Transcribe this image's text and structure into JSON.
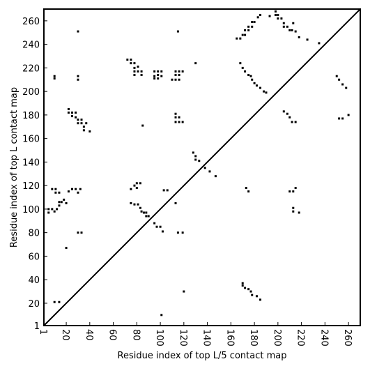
{
  "chart_data": {
    "type": "scatter",
    "xlabel": "Residue index of top L/5 contact map",
    "ylabel": "Residue index of top L contact map",
    "xlim": [
      1,
      270
    ],
    "ylim": [
      1,
      270
    ],
    "xticks": [
      1,
      20,
      40,
      60,
      80,
      100,
      120,
      140,
      160,
      180,
      200,
      220,
      240,
      260
    ],
    "yticks": [
      1,
      20,
      40,
      60,
      80,
      100,
      120,
      140,
      160,
      180,
      200,
      220,
      240,
      260
    ],
    "diagonal": true,
    "series": [
      {
        "color": "#000000",
        "x": [
          10,
          10,
          30,
          30,
          30,
          22,
          22,
          25,
          25,
          28,
          28,
          30,
          30,
          33,
          33,
          35,
          35,
          37,
          40,
          85,
          72,
          75,
          75,
          78,
          78,
          78,
          81,
          81,
          84,
          84,
          78,
          95,
          95,
          98,
          98,
          101,
          101,
          98,
          95,
          110,
          113,
          113,
          116,
          116,
          116,
          113,
          119,
          115,
          113,
          113,
          116,
          116,
          119,
          113,
          130,
          168,
          170,
          172,
          172,
          175,
          175,
          178,
          178,
          180,
          183,
          185,
          198,
          198,
          200,
          200,
          203,
          205,
          205,
          208,
          210,
          212,
          215,
          213,
          218,
          225,
          235,
          165,
          193,
          168,
          170,
          172,
          175,
          177,
          178,
          180,
          182,
          185,
          188,
          190,
          205,
          208,
          210,
          212,
          215,
          250,
          252,
          255,
          258,
          260,
          252,
          255
        ],
        "y": [
          213,
          211,
          251,
          213,
          210,
          185,
          182,
          182,
          179,
          182,
          178,
          176,
          173,
          176,
          173,
          170,
          167,
          173,
          166,
          171,
          227,
          227,
          224,
          224,
          220,
          217,
          221,
          217,
          217,
          214,
          214,
          217,
          213,
          217,
          214,
          217,
          213,
          211,
          211,
          210,
          210,
          214,
          214,
          217,
          210,
          217,
          217,
          251,
          181,
          178,
          178,
          174,
          174,
          174,
          224,
          245,
          248,
          248,
          252,
          252,
          255,
          255,
          259,
          259,
          263,
          265,
          268,
          265,
          265,
          262,
          262,
          258,
          255,
          255,
          252,
          252,
          251,
          258,
          246,
          244,
          241,
          245,
          264,
          224,
          220,
          217,
          214,
          213,
          210,
          207,
          205,
          203,
          200,
          199,
          183,
          181,
          178,
          174,
          174,
          213,
          210,
          206,
          203,
          180,
          177,
          177
        ]
      },
      {
        "color": "#000000",
        "x": [
          5,
          5,
          8,
          10,
          12,
          14,
          14,
          16,
          8,
          11,
          11,
          14,
          18,
          20,
          22,
          25,
          28,
          30,
          32,
          30,
          33,
          20,
          10,
          14,
          75,
          78,
          81,
          83,
          84,
          86,
          88,
          90,
          88,
          75,
          78,
          80,
          80,
          83,
          95,
          97,
          100,
          102,
          103,
          106,
          113,
          115,
          119,
          120,
          101,
          130,
          130,
          133,
          138,
          142,
          147,
          128,
          170,
          170,
          172,
          175,
          177,
          178,
          182,
          185,
          173,
          175,
          210,
          213,
          215,
          213,
          213,
          218
        ],
        "y": [
          97,
          100,
          100,
          98,
          100,
          103,
          106,
          106,
          117,
          117,
          114,
          114,
          108,
          105,
          115,
          117,
          117,
          114,
          117,
          80,
          80,
          67,
          21,
          21,
          105,
          104,
          104,
          101,
          98,
          97,
          94,
          94,
          97,
          117,
          120,
          122,
          118,
          122,
          88,
          85,
          85,
          81,
          116,
          116,
          105,
          80,
          80,
          30,
          10,
          145,
          142,
          141,
          135,
          132,
          128,
          148,
          37,
          35,
          33,
          32,
          30,
          27,
          26,
          23,
          118,
          115,
          115,
          115,
          118,
          101,
          98,
          97
        ]
      }
    ]
  }
}
